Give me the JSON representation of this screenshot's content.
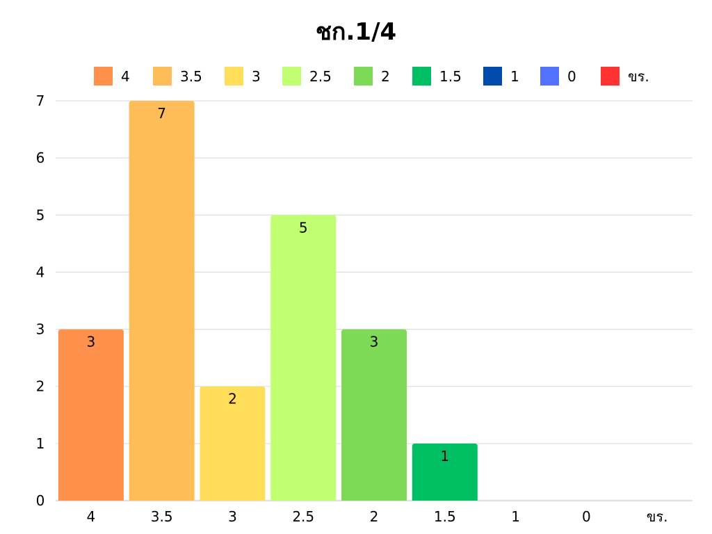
{
  "chart_data": {
    "type": "bar",
    "title": "ชก.1/4",
    "xlabel": "",
    "ylabel": "",
    "categories": [
      "4",
      "3.5",
      "3",
      "2.5",
      "2",
      "1.5",
      "1",
      "0",
      "ขร."
    ],
    "values": [
      3,
      7,
      2,
      5,
      3,
      1,
      0,
      0,
      0
    ],
    "colors": [
      "#FF914D",
      "#FFBD59",
      "#FFDE59",
      "#C1FF72",
      "#7ED957",
      "#00BF63",
      "#004AAD",
      "#5271FF",
      "#FF3131"
    ],
    "ylim": [
      0,
      7
    ],
    "yticks": [
      0,
      1,
      2,
      3,
      4,
      5,
      6,
      7
    ],
    "grid": true,
    "legend_position": "top",
    "data_labels": true
  }
}
